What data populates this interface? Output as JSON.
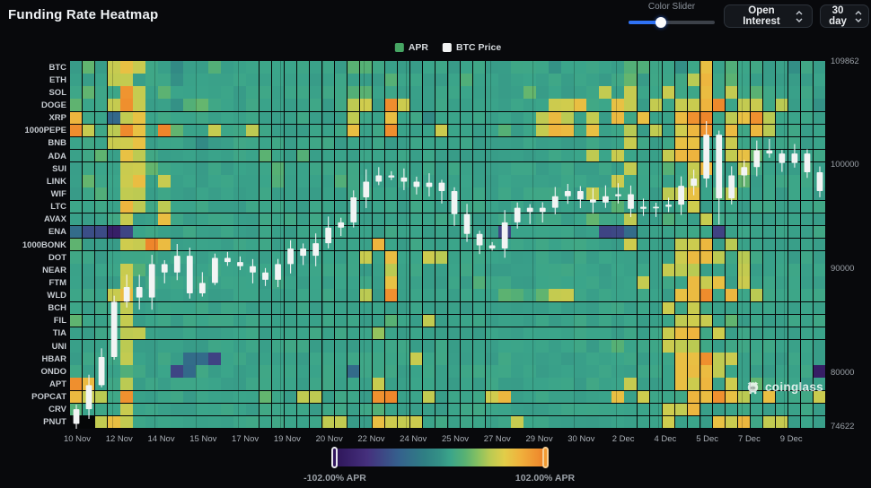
{
  "header": {
    "title": "Funding Rate Heatmap"
  },
  "controls": {
    "color_slider_label": "Color Slider",
    "color_slider_position_pct": 38,
    "metric_dropdown": "Open Interest",
    "period_dropdown": "30 day"
  },
  "legend": [
    {
      "label": "APR",
      "color": "#46a563"
    },
    {
      "label": "BTC Price",
      "color": "#f2f4f4"
    }
  ],
  "watermark": {
    "text": "coinglass"
  },
  "colorbar": {
    "min_label": "-102.00% APR",
    "max_label": "102.00% APR"
  },
  "chart_data": {
    "type": "heatmap",
    "title": "Funding Rate Heatmap",
    "unit": "% APR",
    "x_labels": [
      "10 Nov",
      "12 Nov",
      "14 Nov",
      "15 Nov",
      "17 Nov",
      "19 Nov",
      "20 Nov",
      "22 Nov",
      "24 Nov",
      "25 Nov",
      "27 Nov",
      "29 Nov",
      "30 Nov",
      "2 Dec",
      "4 Dec",
      "5 Dec",
      "7 Dec",
      "9 Dec"
    ],
    "rows": [
      "BTC",
      "ETH",
      "SOL",
      "DOGE",
      "XRP",
      "1000PEPE",
      "BNB",
      "ADA",
      "SUI",
      "LINK",
      "WIF",
      "LTC",
      "AVAX",
      "ENA",
      "1000BONK",
      "DOT",
      "NEAR",
      "FTM",
      "WLD",
      "BCH",
      "FIL",
      "TIA",
      "UNI",
      "HBAR",
      "ONDO",
      "APT",
      "POPCAT",
      "CRV",
      "PNUT"
    ],
    "n_cols": 60,
    "value_scale": {
      "min": -102,
      "max": 102,
      "unit": "% APR"
    },
    "cell_alphabet": {
      "p": -92,
      "n": -55,
      "b": -30,
      "d": -3,
      "g": 9,
      "l": 24,
      "m": 36,
      "y": 52,
      "o": 72,
      "r": 95,
      ".": null
    },
    "cells": [
      "glgyoyggdgglggggggggggllggggggggggggggdgggggllggdgoglggggdgg",
      "gggyygggdgggggggggggggggglggggglgggggggggggglggggyoglggggggg",
      "glggryglggggggggggggggllgggggggggggglgggggygyggyggogyglggggg",
      "lggyryggdllgggggggggggyygrygggggggggggyyoggoygygyyorgyygyggdg",
      "oggbyoggggggggggggggggyggoggdggggggggyoygygogoggorrgyorygggg",
      "rygyrogrlggyggygggggggoggrgggygggglggyoogoggygygyorgogoygggg",
      "gggyyoggggdgggggggggggggggggggggggggggggggggygggooggygggggg g",
      "gglgoyggggggggglgglggggggggggggggggggggggygygggyooggyolgggg",
      "ggggyylggggggggglgggggggggggggggggggggggggggygglgyoggygggggg",
      "glggyogyggggggggleggglgggggggggggggggggggggyggggg yggglggggg",
      "gglgyygggggggggggggggggggggggggggggggggggygggggyyoglygggggg",
      "ggggoygyggggggggggggggggggggggggggggggggggglgggggyggggggggg",
      "ggggyggoggggggggggggggggggggggggggggggggglggygglggyggggggggg",
      "bnnpngggggggggggggggggggggggggggggngggggggnnbggggggnggggggggp",
      "lgggyyroggggggggggggggggoggggggggggggggggggg ygggyyogyggggggg",
      "gggggggggggggggggggggggygoggyyggggggggggggggggggyooygyggggg g",
      "ggggylgggggggggggggggggggygggggggggggggggggggggyyygggygggg g",
      "ggggygggggggggggggggggggg ogggggglggggggggggggygggoyogygggggg",
      "gggyoggggggggggggggggggygrggggggggllglyyggggggggoorgogygggg g",
      "ggggygggggggggggggggggggggggggggggggggggggggggg ygyggggggggg",
      "lgggygggggggggggggggggggglggyggggggggggggggggggg yyyglggggggg",
      "ggggyygggggggggggggggggg mgggggggggggggggggggggg yoogygggggg g",
      "ggggygggggggggggggggggggggggggggggggggggggglgggyyyggggggggg",
      "ggggyggggbbngggggggggggggggyggggggggggggggggggggooryyggggggg",
      "gggglgggnbggggggggggggbgggggggggggggggggggggggggoooyggggggg p",
      "roggygggggggggggggggggggyggggggggggggggggggg ygggoyogyglggggg",
      "oyygrgggggggggglggyyggggrrggyggggyoggggggggogygggooroygoggg yg",
      "lgggygggggggggggggggggg glgggggggggggggggggggggg yyoggggggggg",
      "..yoygggggggggggggggyyggoyyyggggggg ygggggggggggygggoyogyyggg ygg"
    ],
    "price_axis": {
      "ticks": [
        109862,
        100000,
        90000,
        80000,
        74622
      ],
      "min": 74622,
      "max": 109862
    },
    "btc_price_series": {
      "type": "candlestick",
      "name": "BTC Price",
      "first_open": 75100,
      "closes": [
        76500,
        78800,
        81500,
        86800,
        88200,
        87200,
        90400,
        89600,
        91200,
        87600,
        88600,
        91000,
        90600,
        90200,
        89600,
        88900,
        90400,
        91900,
        91200,
        92400,
        93900,
        94400,
        96800,
        98300,
        98900,
        98700,
        98300,
        97800,
        98200,
        97400,
        95200,
        93300,
        92200,
        91900,
        94400,
        95800,
        95400,
        95800,
        96900,
        97400,
        96600,
        96300,
        96900,
        97100,
        95700,
        95900,
        95900,
        96100,
        97900,
        98600,
        102800,
        96700,
        98900,
        99700,
        101300,
        101000,
        100100,
        101000,
        99200,
        97400
      ],
      "overrides": {
        "0": {
          "low": 74622
        },
        "50": {
          "high": 104100
        },
        "51": {
          "low": 94200
        }
      }
    },
    "color_scale": {
      "stops": [
        [
          -102,
          "#2d1458"
        ],
        [
          -70,
          "#45307d"
        ],
        [
          -40,
          "#35608d"
        ],
        [
          -15,
          "#2f7f84"
        ],
        [
          0,
          "#349186"
        ],
        [
          10,
          "#3ba58a"
        ],
        [
          24,
          "#58b173"
        ],
        [
          36,
          "#84c062"
        ],
        [
          48,
          "#b9ca53"
        ],
        [
          62,
          "#e2cd49"
        ],
        [
          78,
          "#f0b03c"
        ],
        [
          102,
          "#ee7f28"
        ]
      ]
    },
    "legend_position": "top-center",
    "grid": "faint-vertical"
  }
}
